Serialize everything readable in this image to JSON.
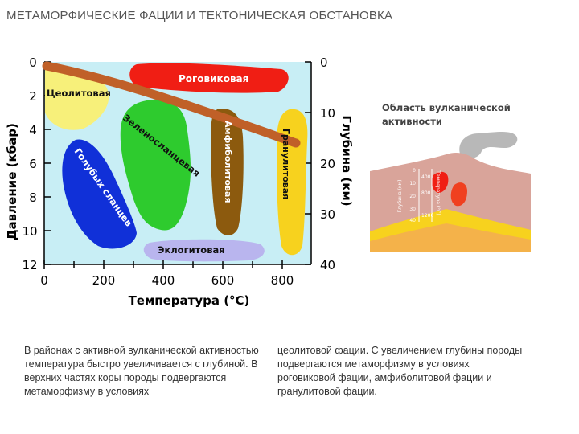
{
  "title": "МЕТАМОРФИЧЕСКИЕ ФАЦИИ И ТЕКТОНИЧЕСКАЯ ОБСТАНОВКА",
  "diagram": {
    "y_left_label": "Давление (кбар)",
    "y_left_ticks": [
      "0",
      "2",
      "4",
      "6",
      "8",
      "10",
      "12"
    ],
    "y_right_label": "Глубина (км)",
    "y_right_ticks": [
      "0",
      "10",
      "20",
      "30",
      "40"
    ],
    "x_label": "Температура (°С)",
    "x_ticks": [
      "0",
      "200",
      "400",
      "600",
      "800"
    ],
    "facies": {
      "zeolite": "Цеолитовая",
      "hornfels": "Роговиковая",
      "greenschist": "Зеленосланцевая",
      "blueschist": "Голубых сланцев",
      "amphibolite": "Амфиболитовая",
      "granulite": "Гранулитовая",
      "eclogite": "Эклогитовая"
    },
    "colors": {
      "background": "#c8eef5",
      "zeolite": "#f7f07a",
      "hornfels": "#f01e14",
      "greenschist": "#2ecb2e",
      "blueschist": "#1030d8",
      "amphibolite": "#8c5a0e",
      "granulite": "#f7d21e",
      "eclogite": "#b9b5ee",
      "geotherm": "#c06028"
    }
  },
  "volcano": {
    "title": "Область вулканической активности",
    "depth_label": "Глубина (км)",
    "depth_ticks": [
      "0",
      "10",
      "20",
      "30",
      "40"
    ],
    "temperature_label": "Температура (°С)",
    "temperature_ticks": [
      "400",
      "800",
      "1200"
    ]
  },
  "text": {
    "col1": "В районах с активной вулканической активностью температура быстро увеличивается с глубиной. В верхних частях коры породы подвергаются метаморфизму в условиях",
    "col2": "цеолитовой фации. С увеличением глубины породы подвергаются метаморфизму в условиях роговиковой фации, амфиболитовой фации и гранулитовой фации."
  }
}
